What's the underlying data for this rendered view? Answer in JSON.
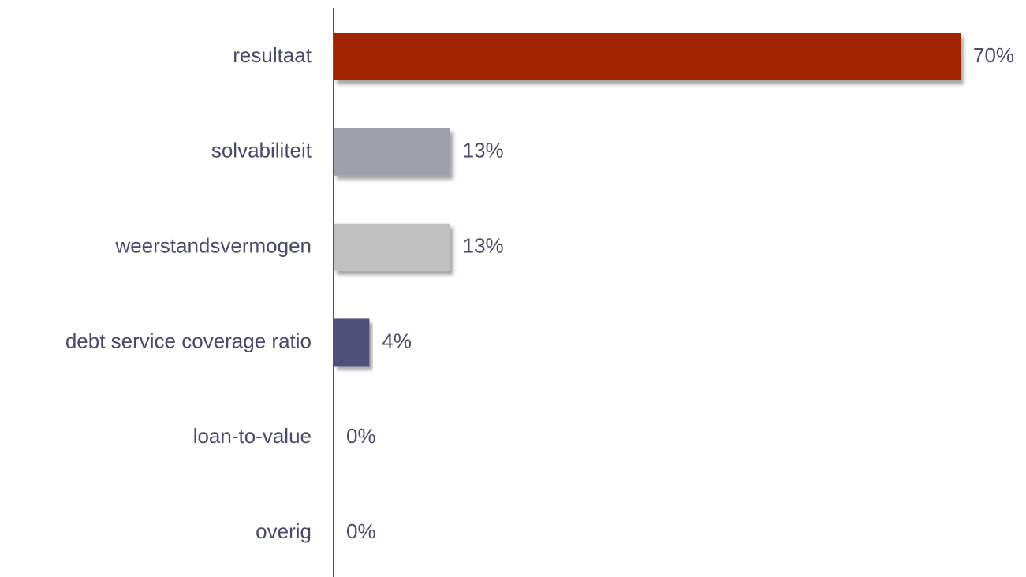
{
  "chart_data": {
    "type": "bar",
    "orientation": "horizontal",
    "categories": [
      "resultaat",
      "solvabiliteit",
      "weerstandsvermogen",
      "debt service coverage ratio",
      "loan-to-value",
      "overig"
    ],
    "values": [
      70,
      13,
      13,
      4,
      0,
      0
    ],
    "value_labels": [
      "70%",
      "13%",
      "13%",
      "4%",
      "0%",
      "0%"
    ],
    "colors": [
      "#a12800",
      "#a0a0ac",
      "#c0c0c0",
      "#50507a",
      "#50507a",
      "#50507a"
    ]
  }
}
